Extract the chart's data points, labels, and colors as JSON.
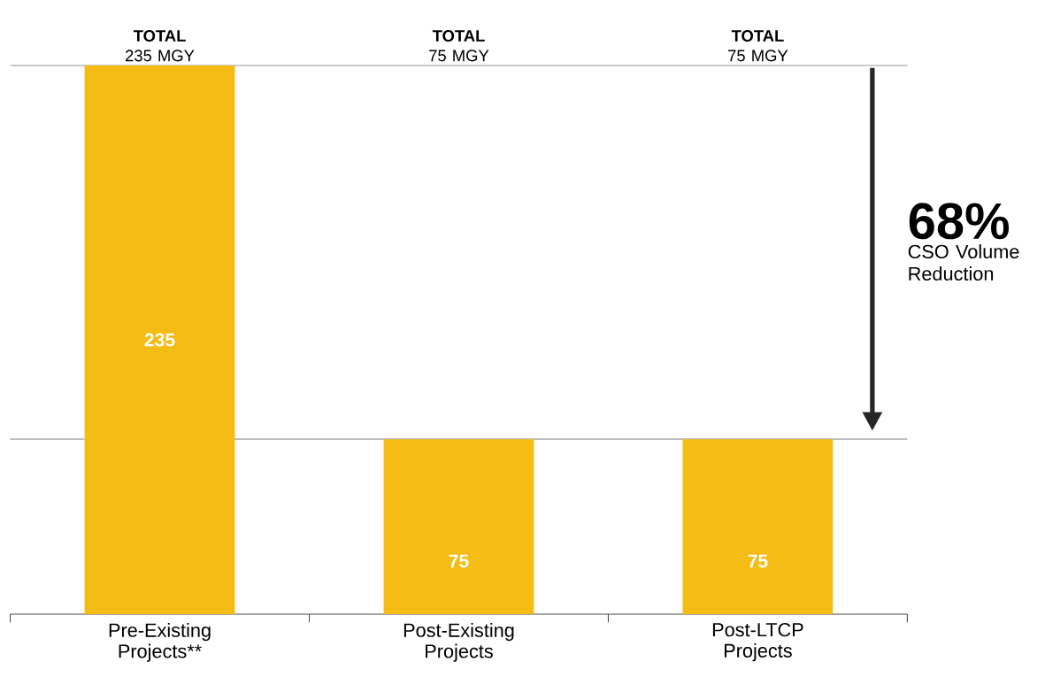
{
  "chart_data": {
    "type": "bar",
    "categories": [
      "Pre-Existing Projects**",
      "Post-Existing Projects",
      "Post-LTCP Projects"
    ],
    "values": [
      235,
      75,
      75
    ],
    "color": "#f5bc15",
    "data_labels": true,
    "ref_lines": [
      {
        "axis": "y",
        "value": 235,
        "color": "#999999"
      },
      {
        "axis": "y",
        "value": 75,
        "color": "#999999"
      }
    ],
    "annotations": [
      "**TOTAL** 235 MGY",
      "**TOTAL** 75 MGY",
      "**TOTAL** 75 MGY",
      "68%",
      "CSO Volume Reduction"
    ]
  }
}
